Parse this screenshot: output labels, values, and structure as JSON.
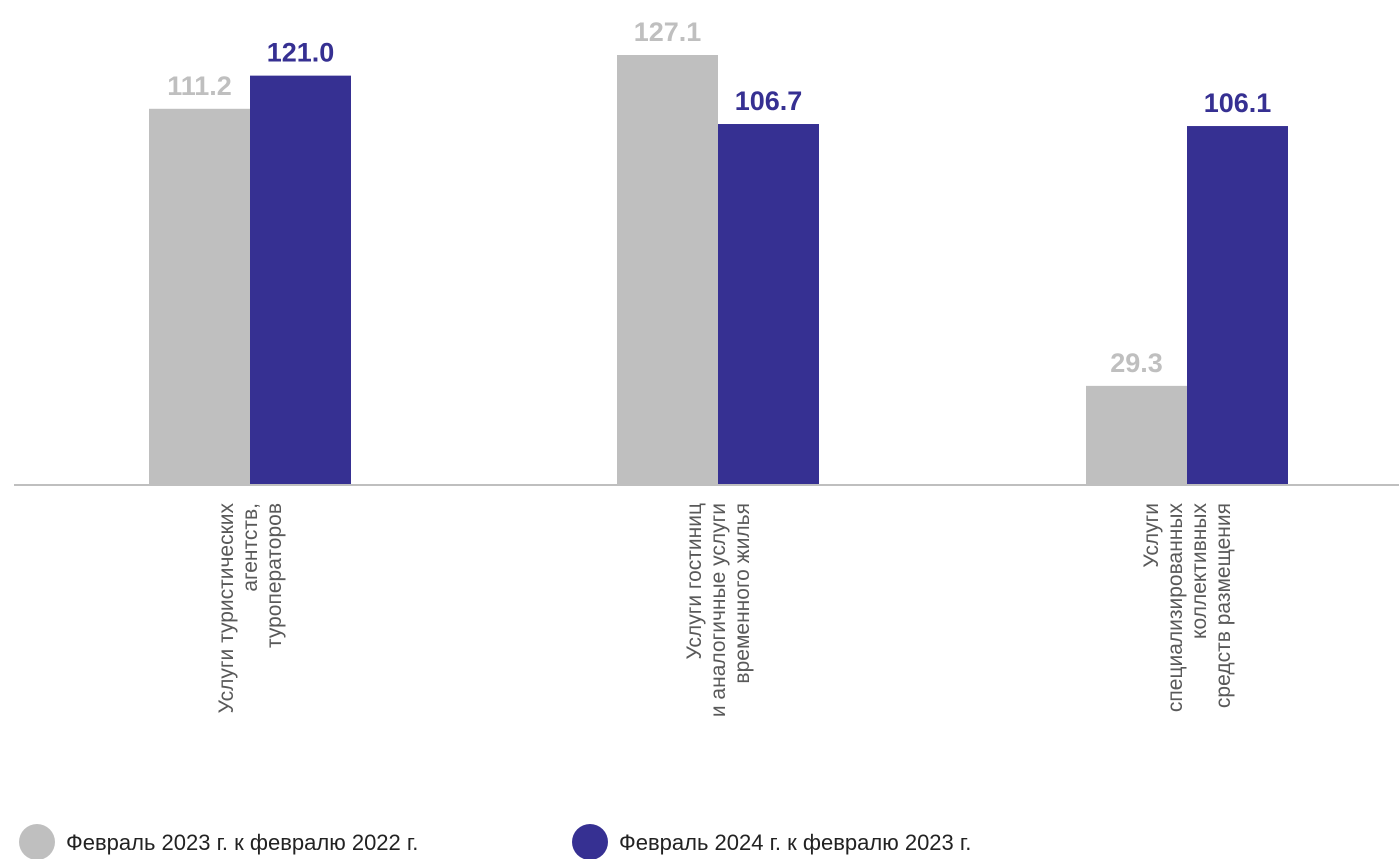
{
  "chart_data": {
    "type": "bar",
    "categories": [
      [
        "Услуги туристических",
        "агентств,",
        "туроператоров"
      ],
      [
        "Услуги гостиниц",
        "и аналогичные услуги",
        "временного жилья"
      ],
      [
        "Услуги",
        "специализированных",
        "коллективных",
        "средств размещения"
      ]
    ],
    "series": [
      {
        "name": "Февраль 2023 г. к февралю 2022 г.",
        "values": [
          111.2,
          127.1,
          29.3
        ],
        "labels": [
          "111.2",
          "127.1",
          "29.3"
        ],
        "color": "#bfbfbf"
      },
      {
        "name": "Февраль 2024 г. к февралю 2023 г.",
        "values": [
          121.0,
          106.7,
          106.1
        ],
        "labels": [
          "121.0",
          "106.7",
          "106.1"
        ],
        "color": "#363092"
      }
    ],
    "ylim": [
      0,
      132
    ],
    "grid": false,
    "legend": "bottom-left",
    "axis_color": "#bfbfbf"
  }
}
